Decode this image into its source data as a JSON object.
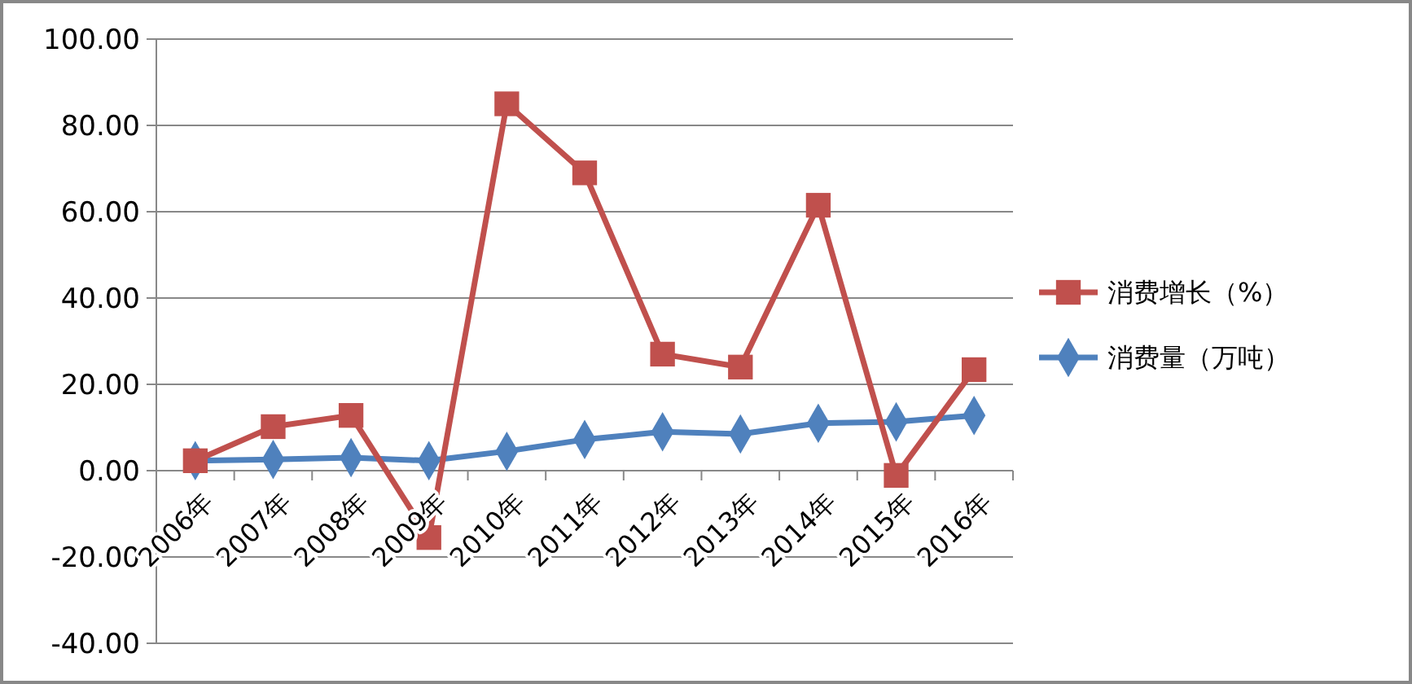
{
  "chart_data": {
    "type": "line",
    "categories": [
      "2006年",
      "2007年",
      "2008年",
      "2009年",
      "2010年",
      "2011年",
      "2012年",
      "2013年",
      "2014年",
      "2015年",
      "2016年"
    ],
    "series": [
      {
        "name": "消费增长（%）",
        "color": "#c0504d",
        "marker": "square",
        "values": [
          2.3,
          10.2,
          12.8,
          -15.5,
          85,
          69,
          27,
          24,
          61.5,
          -1.1,
          23.4
        ]
      },
      {
        "name": "消费量（万吨）",
        "color": "#4f81bd",
        "marker": "diamond",
        "values": [
          2.3,
          2.6,
          3.0,
          2.3,
          4.5,
          7.2,
          9,
          8.5,
          11,
          11.3,
          12.8
        ]
      }
    ],
    "ylim": [
      -40,
      100
    ],
    "yticks": [
      {
        "value": -40,
        "label": "-40.00"
      },
      {
        "value": -20,
        "label": "-20.00"
      },
      {
        "value": 0,
        "label": "0.00"
      },
      {
        "value": 20,
        "label": "20.00"
      },
      {
        "value": 40,
        "label": "40.00"
      },
      {
        "value": 60,
        "label": "60.00"
      },
      {
        "value": 80,
        "label": "80.00"
      },
      {
        "value": 100,
        "label": "100.00"
      }
    ],
    "grid": "y",
    "legend": "right"
  }
}
